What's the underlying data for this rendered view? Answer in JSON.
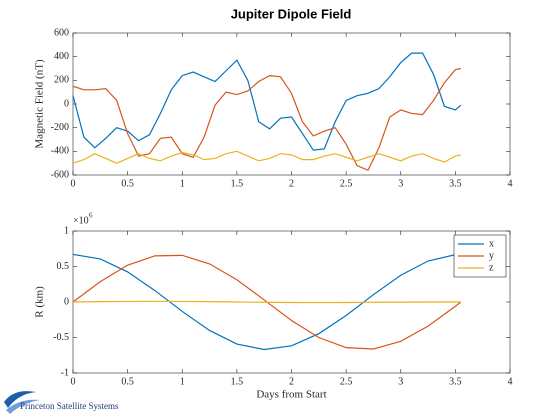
{
  "chart_data": [
    {
      "type": "line",
      "title": "Jupiter Dipole Field",
      "ylabel": "Magnetic Field (nT)",
      "x": [
        0,
        0.1,
        0.2,
        0.3,
        0.4,
        0.5,
        0.6,
        0.7,
        0.8,
        0.9,
        1.0,
        1.1,
        1.2,
        1.3,
        1.4,
        1.5,
        1.6,
        1.7,
        1.8,
        1.9,
        2.0,
        2.1,
        2.2,
        2.3,
        2.4,
        2.5,
        2.6,
        2.7,
        2.8,
        2.9,
        3.0,
        3.1,
        3.2,
        3.3,
        3.4,
        3.5,
        3.55
      ],
      "series": [
        {
          "color": "#0072bd",
          "values": [
            70,
            -280,
            -370,
            -290,
            -200,
            -230,
            -310,
            -260,
            -80,
            120,
            240,
            270,
            230,
            190,
            280,
            370,
            200,
            -150,
            -210,
            -120,
            -110,
            -250,
            -390,
            -380,
            -150,
            30,
            70,
            90,
            130,
            230,
            350,
            430,
            430,
            250,
            -20,
            -50,
            -10
          ]
        },
        {
          "color": "#d95319",
          "values": [
            150,
            120,
            120,
            130,
            30,
            -250,
            -440,
            -420,
            -290,
            -280,
            -420,
            -450,
            -280,
            -10,
            100,
            80,
            110,
            190,
            240,
            230,
            90,
            -150,
            -270,
            -230,
            -200,
            -340,
            -520,
            -560,
            -370,
            -110,
            -50,
            -80,
            -90,
            30,
            180,
            290,
            300
          ]
        },
        {
          "color": "#edb120",
          "values": [
            -500,
            -470,
            -420,
            -460,
            -500,
            -460,
            -420,
            -460,
            -480,
            -440,
            -410,
            -430,
            -470,
            -460,
            -420,
            -400,
            -440,
            -480,
            -460,
            -420,
            -430,
            -470,
            -470,
            -440,
            -420,
            -450,
            -480,
            -450,
            -420,
            -450,
            -480,
            -440,
            -420,
            -460,
            -490,
            -440,
            -430
          ]
        }
      ],
      "xlim": [
        0,
        4
      ],
      "xticks": [
        0,
        0.5,
        1,
        1.5,
        2,
        2.5,
        3,
        3.5,
        4
      ],
      "ylim": [
        -600,
        600
      ],
      "yticks": [
        -600,
        -400,
        -200,
        0,
        200,
        400,
        600
      ]
    },
    {
      "type": "line",
      "xlabel": "Days from Start",
      "ylabel": "R (km)",
      "y_multiplier": {
        "base": "×10",
        "exponent": "6"
      },
      "x": [
        0,
        0.25,
        0.5,
        0.75,
        1.0,
        1.25,
        1.5,
        1.75,
        2.0,
        2.25,
        2.5,
        2.75,
        3.0,
        3.25,
        3.5,
        3.55
      ],
      "series": [
        {
          "name": "x",
          "color": "#0072bd",
          "values": [
            0.67,
            0.606,
            0.424,
            0.161,
            -0.133,
            -0.401,
            -0.592,
            -0.669,
            -0.617,
            -0.446,
            -0.19,
            0.103,
            0.377,
            0.577,
            0.667,
            0.67
          ]
        },
        {
          "name": "y",
          "color": "#d95319",
          "values": [
            0,
            0.287,
            0.519,
            0.65,
            0.657,
            0.537,
            0.313,
            0.029,
            -0.26,
            -0.5,
            -0.643,
            -0.662,
            -0.554,
            -0.34,
            -0.06,
            0
          ]
        },
        {
          "name": "z",
          "color": "#edb120",
          "values": [
            0,
            0.005,
            0.008,
            0.01,
            0.008,
            0.005,
            0,
            -0.004,
            -0.007,
            -0.008,
            -0.007,
            -0.004,
            -0.002,
            0,
            0.002,
            0
          ]
        }
      ],
      "xlim": [
        0,
        4
      ],
      "xticks": [
        0,
        0.5,
        1,
        1.5,
        2,
        2.5,
        3,
        3.5,
        4
      ],
      "ylim": [
        -1,
        1
      ],
      "yticks": [
        -1,
        -0.5,
        0,
        0.5,
        1
      ],
      "legend": "northeast"
    }
  ],
  "footer": "Princeton Satellite Systems"
}
